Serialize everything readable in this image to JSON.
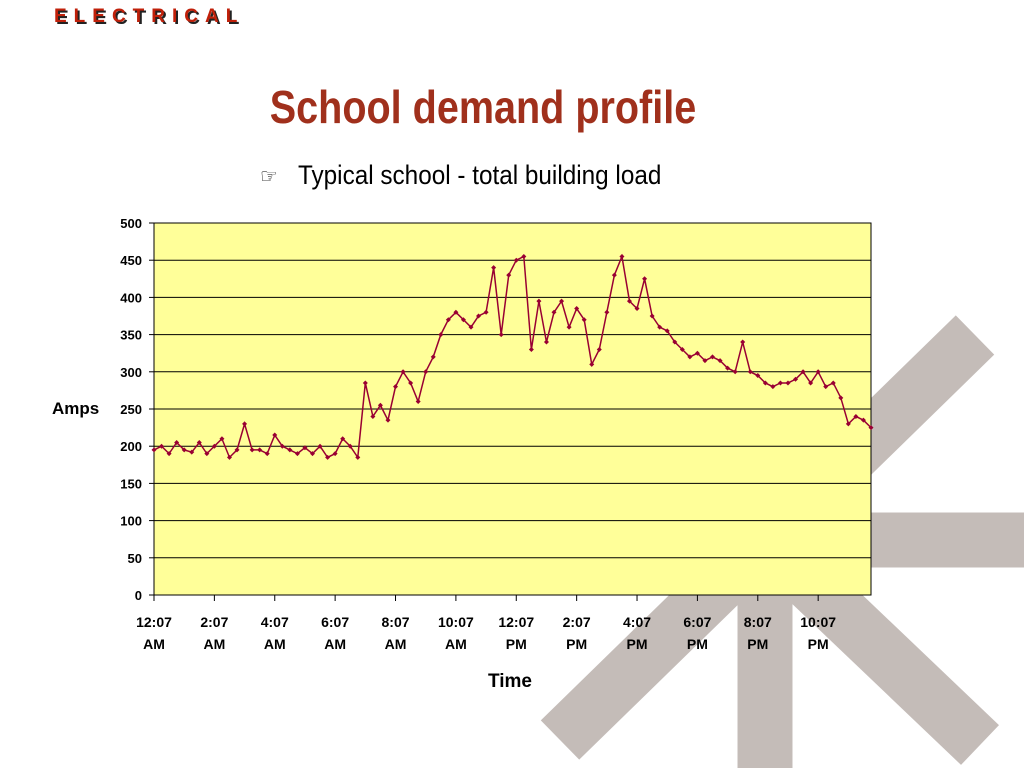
{
  "header": "ELECTRICAL",
  "chart_data": {
    "type": "line",
    "title": "School demand profile",
    "subtitle": "Typical school - total building load",
    "x_label": "Time",
    "y_label": "Amps",
    "color": "#990033",
    "plot_background": "#ffff99",
    "grid": true,
    "x": [
      0,
      0.25,
      0.5,
      0.75,
      1,
      1.25,
      1.5,
      1.75,
      2,
      2.25,
      2.5,
      2.75,
      3,
      3.25,
      3.5,
      3.75,
      4,
      4.25,
      4.5,
      4.75,
      5,
      5.25,
      5.5,
      5.75,
      6,
      6.25,
      6.5,
      6.75,
      7,
      7.25,
      7.5,
      7.75,
      8,
      8.25,
      8.5,
      8.75,
      9,
      9.25,
      9.5,
      9.75,
      10,
      10.25,
      10.5,
      10.75,
      11,
      11.25,
      11.5,
      11.75,
      12,
      12.25,
      12.5,
      12.75,
      13,
      13.25,
      13.5,
      13.75,
      14,
      14.25,
      14.5,
      14.75,
      15,
      15.25,
      15.5,
      15.75,
      16,
      16.25,
      16.5,
      16.75,
      17,
      17.25,
      17.5,
      17.75,
      18,
      18.25,
      18.5,
      18.75,
      19,
      19.25,
      19.5,
      19.75,
      20,
      20.25,
      20.5,
      20.75,
      21,
      21.25,
      21.5,
      21.75,
      22,
      22.25,
      22.5,
      22.75,
      23,
      23.25,
      23.5,
      23.75
    ],
    "values": [
      195,
      200,
      190,
      205,
      195,
      192,
      205,
      190,
      200,
      210,
      185,
      195,
      230,
      195,
      195,
      190,
      215,
      200,
      195,
      190,
      198,
      190,
      200,
      185,
      190,
      210,
      200,
      185,
      285,
      240,
      255,
      235,
      280,
      300,
      285,
      260,
      300,
      320,
      350,
      370,
      380,
      370,
      360,
      375,
      380,
      440,
      350,
      430,
      450,
      455,
      330,
      395,
      340,
      380,
      395,
      360,
      385,
      370,
      310,
      330,
      380,
      430,
      455,
      395,
      385,
      425,
      375,
      360,
      355,
      340,
      330,
      320,
      325,
      315,
      320,
      315,
      305,
      300,
      340,
      300,
      295,
      285,
      280,
      285,
      285,
      290,
      300,
      285,
      300,
      280,
      285,
      265,
      230,
      240,
      235,
      225
    ],
    "xlim": [
      0,
      23.75
    ],
    "ylim": [
      0,
      500
    ],
    "yticks": [
      0,
      50,
      100,
      150,
      200,
      250,
      300,
      350,
      400,
      450,
      500
    ],
    "xticks": [
      {
        "value": 0,
        "label": "12:07 AM"
      },
      {
        "value": 2,
        "label": "2:07 AM"
      },
      {
        "value": 4,
        "label": "4:07 AM"
      },
      {
        "value": 6,
        "label": "6:07 AM"
      },
      {
        "value": 8,
        "label": "8:07 AM"
      },
      {
        "value": 10,
        "label": "10:07 AM"
      },
      {
        "value": 12,
        "label": "12:07 PM"
      },
      {
        "value": 14,
        "label": "2:07 PM"
      },
      {
        "value": 16,
        "label": "4:07 PM"
      },
      {
        "value": 18,
        "label": "6:07 PM"
      },
      {
        "value": 20,
        "label": "8:07 PM"
      },
      {
        "value": 22,
        "label": "10:07 PM"
      }
    ]
  }
}
